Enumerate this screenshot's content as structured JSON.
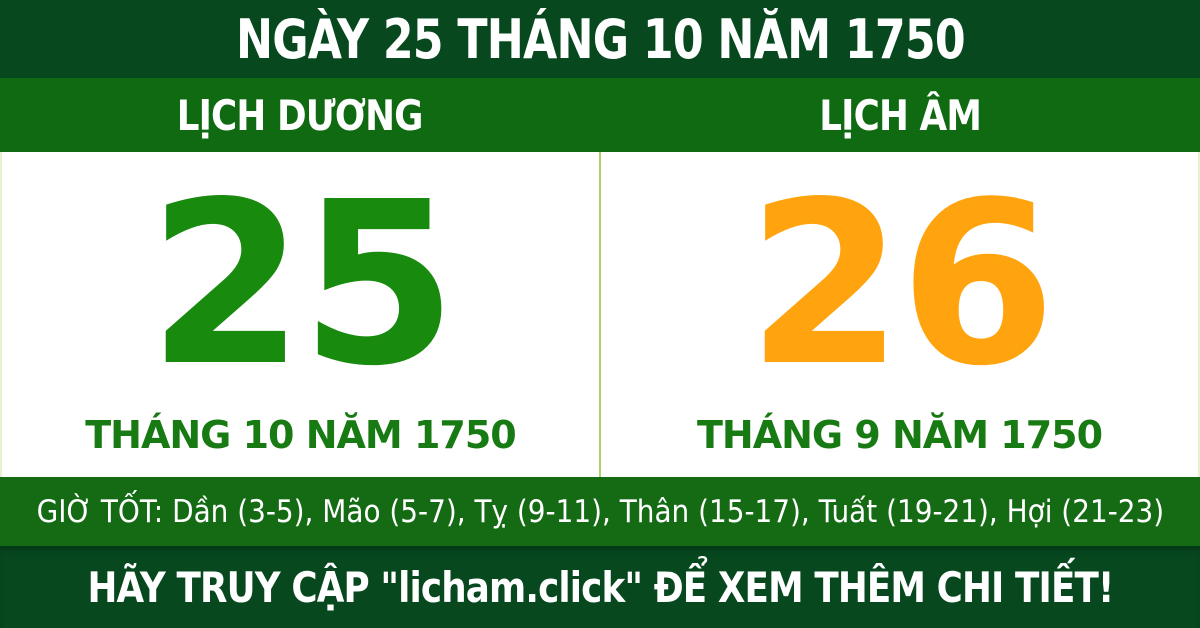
{
  "header": {
    "title": "NGÀY 25 THÁNG 10 NĂM 1750"
  },
  "calendar": {
    "solar": {
      "heading": "LỊCH DƯƠNG",
      "day": "25",
      "day_color": "#188a0e",
      "month_year": "THÁNG 10 NĂM 1750"
    },
    "lunar": {
      "heading": "LỊCH ÂM",
      "day": "26",
      "day_color": "#ffa40e",
      "month_year": "THÁNG 9 NĂM 1750"
    }
  },
  "good_hours": {
    "text": "GIỜ TỐT: Dần (3-5), Mão (5-7), Tỵ (9-11), Thân (15-17), Tuất (19-21), Hợi (21-23)"
  },
  "footer": {
    "text": "HÃY TRUY CẬP \"licham.click\" ĐỂ XEM THÊM CHI TIẾT!"
  },
  "colors": {
    "dark_green_bar": "#07481f",
    "green_bar": "#0f6a11",
    "solar_day_green": "#188a0e",
    "lunar_day_orange": "#ffa40e",
    "month_text_green": "#187a12",
    "divider_light_green": "#a9d46f"
  }
}
